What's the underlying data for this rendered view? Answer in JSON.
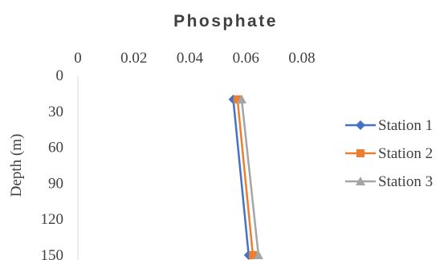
{
  "chart_data": {
    "type": "line",
    "title": "Phosphate",
    "xlabel": "",
    "ylabel": "Depth (m)",
    "x_axis_position": "top",
    "y_axis_reversed": true,
    "xlim": [
      0,
      0.08
    ],
    "ylim": [
      0,
      150
    ],
    "x_ticks": [
      "0",
      "0.02",
      "0.04",
      "0.06",
      "0.08"
    ],
    "y_ticks": [
      "0",
      "30",
      "60",
      "90",
      "120",
      "150"
    ],
    "grid": false,
    "legend_position": "right",
    "series": [
      {
        "name": "Station 1",
        "color": "#4472C4",
        "marker": "diamond",
        "depth": [
          20,
          150
        ],
        "value": [
          0.0555,
          0.061
        ]
      },
      {
        "name": "Station 2",
        "color": "#ED7D31",
        "marker": "square",
        "depth": [
          20,
          150
        ],
        "value": [
          0.057,
          0.0625
        ]
      },
      {
        "name": "Station 3",
        "color": "#A5A5A5",
        "marker": "triangle",
        "depth": [
          20,
          150
        ],
        "value": [
          0.0585,
          0.0645
        ]
      }
    ]
  }
}
